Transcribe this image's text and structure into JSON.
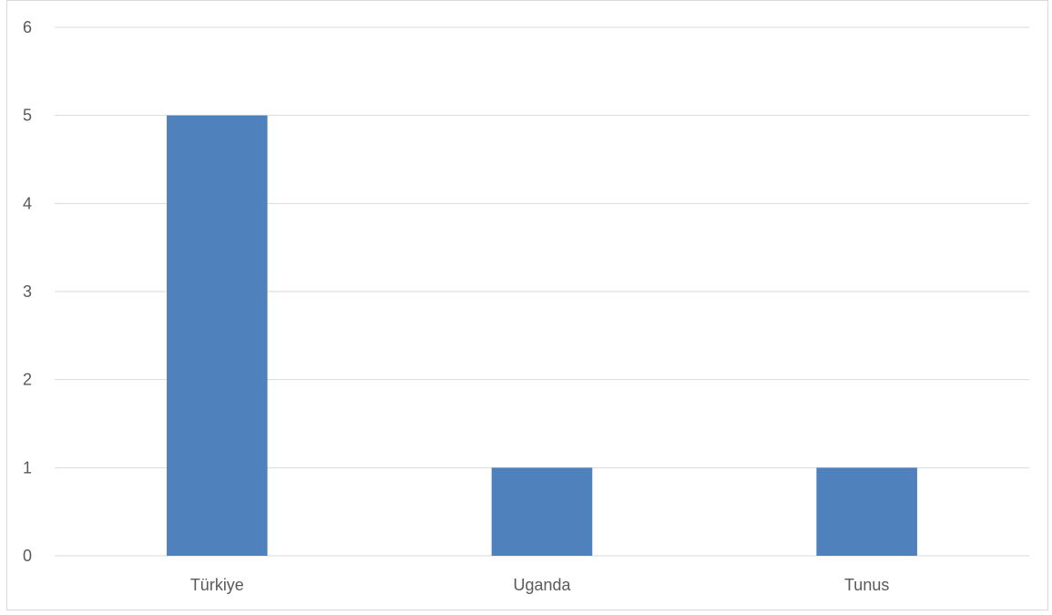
{
  "chart_data": {
    "type": "bar",
    "categories": [
      "Türkiye",
      "Uganda",
      "Tunus"
    ],
    "values": [
      5,
      1,
      1
    ],
    "title": "",
    "xlabel": "",
    "ylabel": "",
    "ylim": [
      0,
      6
    ],
    "yticks": [
      0,
      1,
      2,
      3,
      4,
      5,
      6
    ],
    "grid": true,
    "legend": "none",
    "bar_color": "#4f81bd",
    "grid_color": "#d9d9d9"
  }
}
